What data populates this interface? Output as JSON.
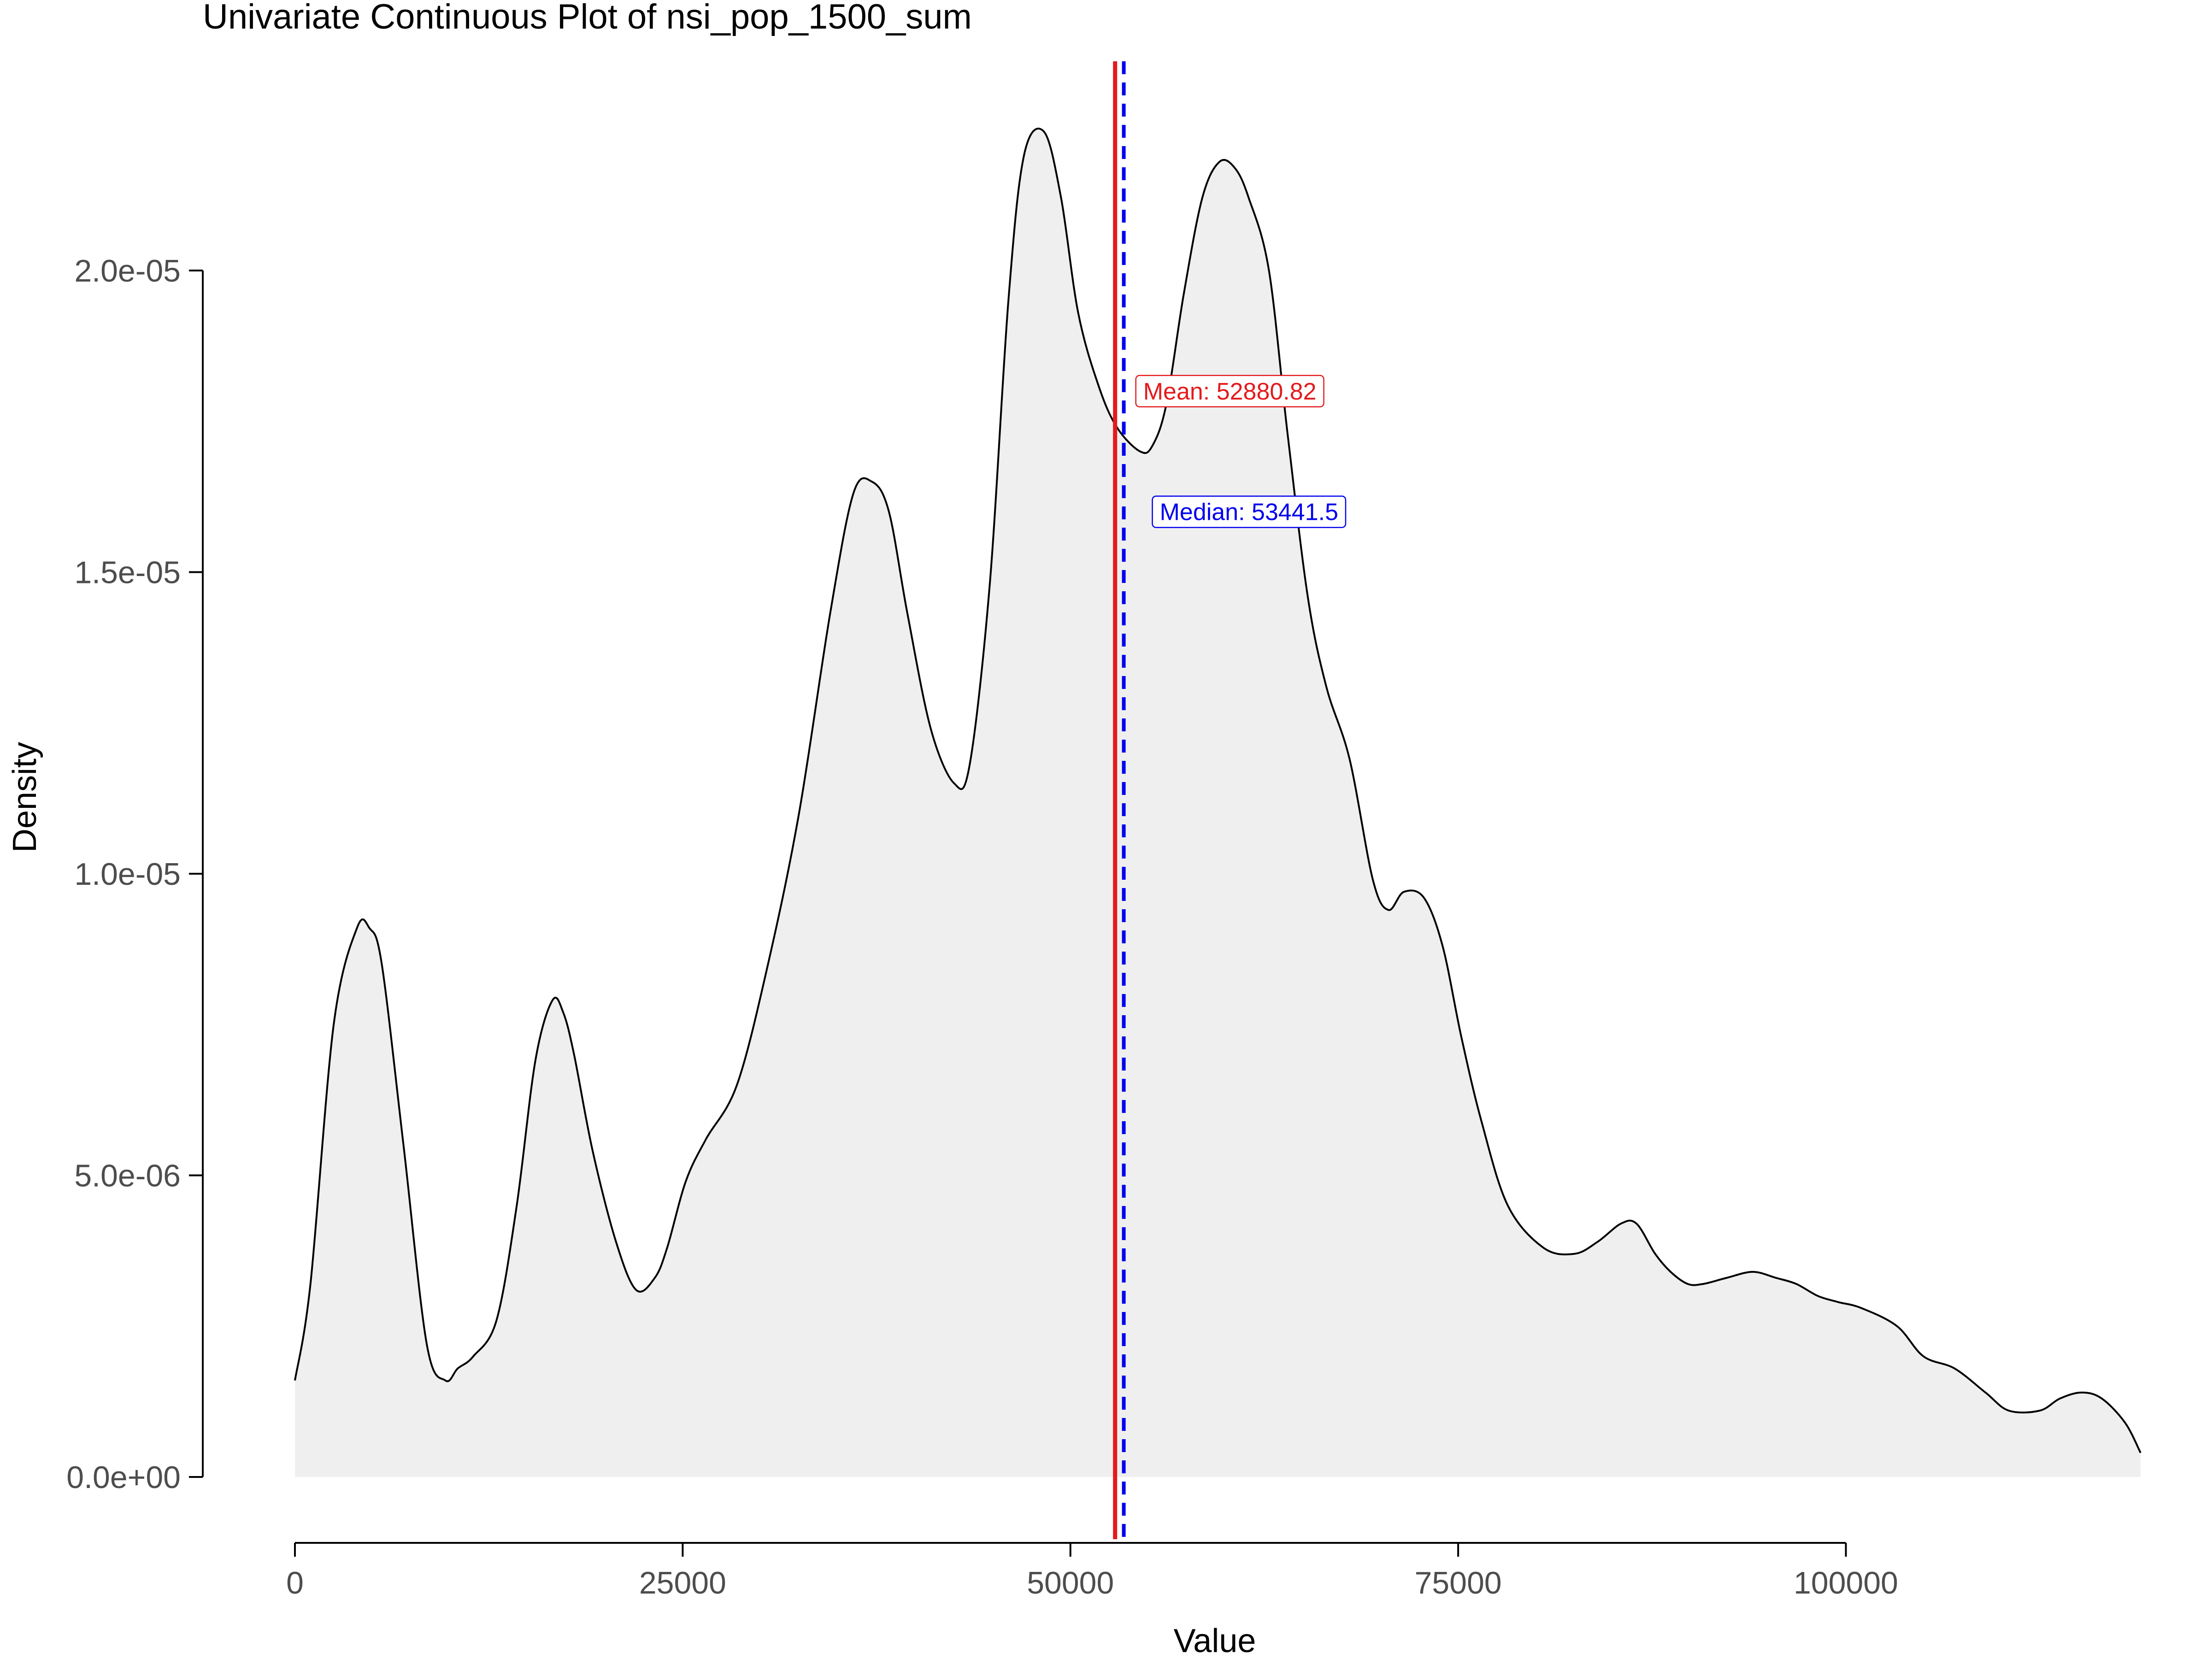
{
  "chart_data": {
    "type": "area",
    "title": "Univariate Continuous Plot of nsi_pop_1500_sum",
    "xlabel": "Value",
    "ylabel": "Density",
    "xlim": [
      0,
      119000
    ],
    "ylim": [
      0,
      2.25e-05
    ],
    "x_ticks": [
      0,
      25000,
      50000,
      75000,
      100000
    ],
    "x_tick_labels": [
      "0",
      "25000",
      "50000",
      "75000",
      "100000"
    ],
    "y_ticks": [
      0,
      5e-06,
      1e-05,
      1.5e-05,
      2e-05
    ],
    "y_tick_labels": [
      "0.0e+00",
      "5.0e-06",
      "1.0e-05",
      "1.5e-05",
      "2.0e-05"
    ],
    "grid": false,
    "fill_color": "#efefef",
    "line_color": "#000000",
    "series": [
      {
        "x": [
          0,
          1000,
          2500,
          4000,
          4800,
          5600,
          7000,
          8500,
          9700,
          10500,
          11500,
          13000,
          14300,
          15500,
          16600,
          17300,
          18000,
          19200,
          20700,
          22000,
          23200,
          24000,
          25200,
          26500,
          28500,
          30500,
          32500,
          34500,
          36000,
          37200,
          38300,
          39500,
          41000,
          42500,
          43500,
          44800,
          46000,
          47000,
          48300,
          49400,
          50500,
          51800,
          53000,
          54500,
          55300,
          56200,
          57300,
          58500,
          59600,
          60600,
          61500,
          62800,
          64000,
          65300,
          66500,
          68000,
          69500,
          70500,
          71500,
          72800,
          74000,
          75200,
          76500,
          78200,
          80500,
          82500,
          84000,
          85500,
          86500,
          87700,
          88700,
          89800,
          90800,
          92300,
          94000,
          95500,
          96800,
          98200,
          99500,
          101000,
          103300,
          105000,
          107000,
          109000,
          110500,
          112500,
          113800,
          115200,
          116500,
          118000,
          119000
        ],
        "y": [
          1.6e-06,
          3.2e-06,
          7.5e-06,
          9.1e-06,
          9.1e-06,
          8.5e-06,
          5.5e-06,
          2.2e-06,
          1.6e-06,
          1.8e-06,
          2e-06,
          2.6e-06,
          4.5e-06,
          6.9e-06,
          7.9e-06,
          7.7e-06,
          7e-06,
          5.4e-06,
          3.9e-06,
          3.1e-06,
          3.3e-06,
          3.8e-06,
          4.9e-06,
          5.6e-06,
          6.5e-06,
          8.5e-06,
          1.1e-05,
          1.43e-05,
          1.63e-05,
          1.65e-05,
          1.6e-05,
          1.43e-05,
          1.24e-05,
          1.15e-05,
          1.18e-05,
          1.48e-05,
          1.95e-05,
          2.19e-05,
          2.23e-05,
          2.12e-05,
          1.93e-05,
          1.81e-05,
          1.74e-05,
          1.7e-05,
          1.71e-05,
          1.78e-05,
          1.96e-05,
          2.12e-05,
          2.18e-05,
          2.17e-05,
          2.12e-05,
          2e-05,
          1.73e-05,
          1.46e-05,
          1.31e-05,
          1.19e-05,
          9.9e-06,
          9.4e-06,
          9.7e-06,
          9.6e-06,
          8.8e-06,
          7.3e-06,
          5.9e-06,
          4.5e-06,
          3.8e-06,
          3.7e-06,
          3.9e-06,
          4.2e-06,
          4.2e-06,
          3.7e-06,
          3.4e-06,
          3.2e-06,
          3.2e-06,
          3.3e-06,
          3.4e-06,
          3.3e-06,
          3.2e-06,
          3e-06,
          2.9e-06,
          2.8e-06,
          2.5e-06,
          2e-06,
          1.8e-06,
          1.4e-06,
          1.1e-06,
          1.1e-06,
          1.3e-06,
          1.4e-06,
          1.3e-06,
          9e-07,
          4e-07
        ]
      }
    ],
    "annotations": [
      {
        "kind": "vline",
        "label": "Mean: 52880.82",
        "x": 52880.82,
        "color": "#e41a1c",
        "style": "solid",
        "label_y": 1.8e-05
      },
      {
        "kind": "vline",
        "label": "Median: 53441.5",
        "x": 53441.5,
        "color": "#0000ee",
        "style": "dashed",
        "label_y": 1.6e-05
      }
    ]
  }
}
